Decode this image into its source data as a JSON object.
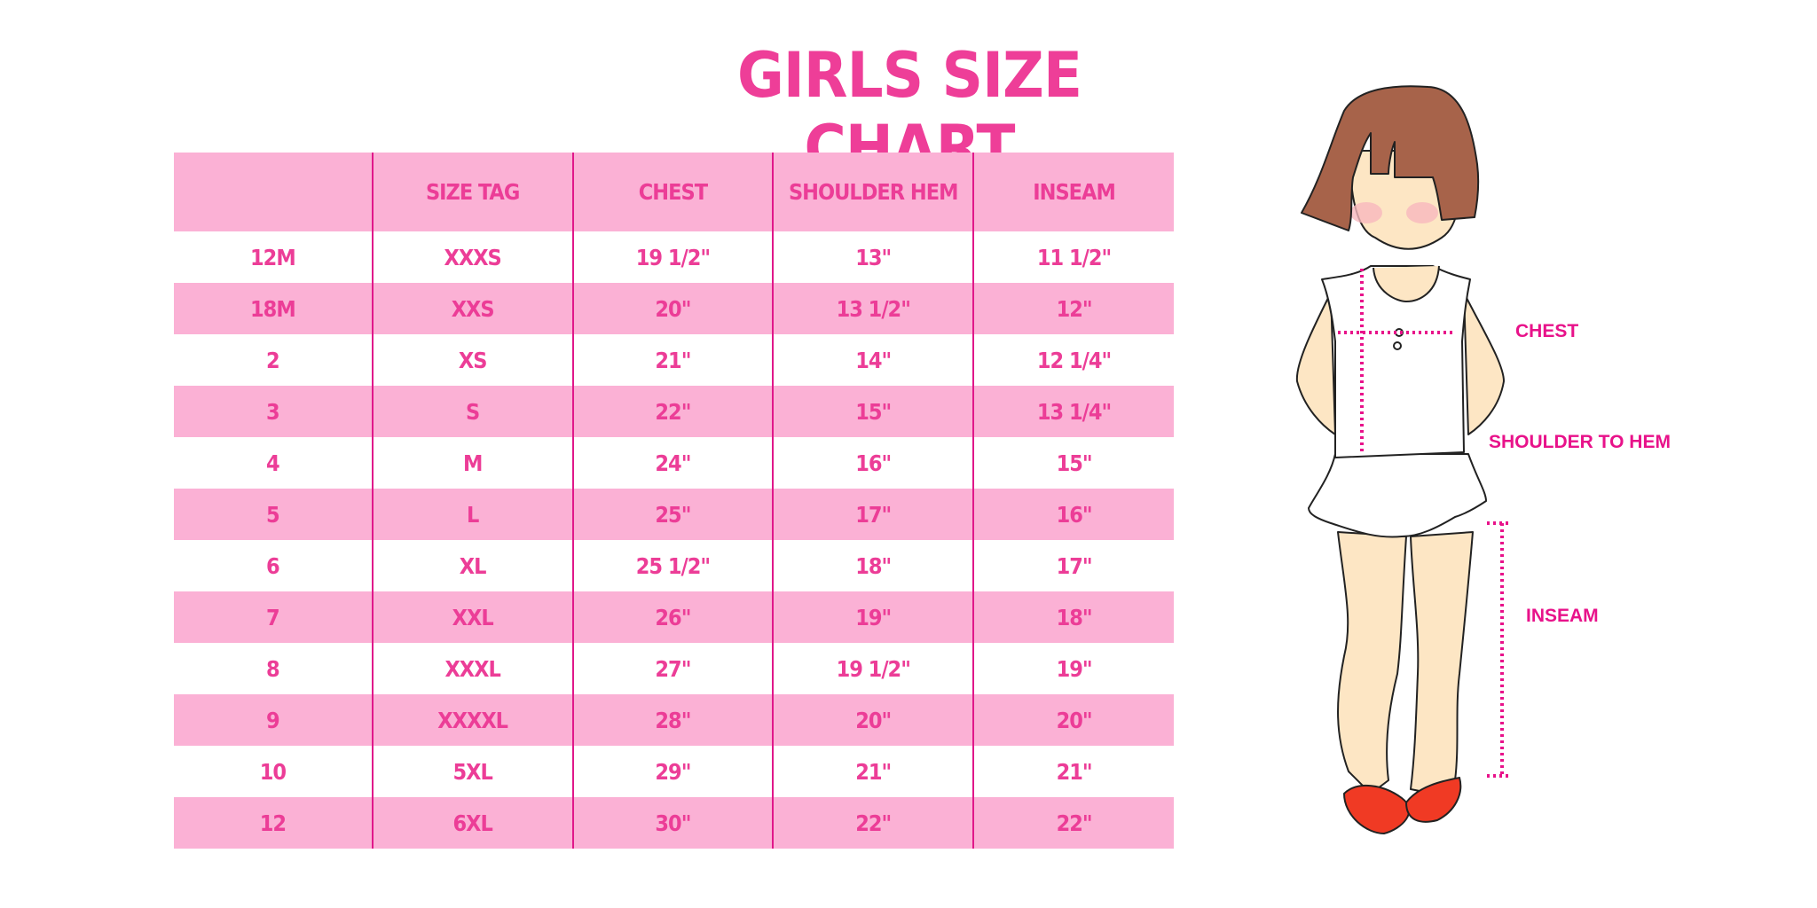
{
  "title": "GIRLS SIZE CHART",
  "table": {
    "headers": [
      "",
      "SIZE TAG",
      "CHEST",
      "SHOULDER HEM",
      "INSEAM"
    ],
    "rows": [
      [
        "12M",
        "XXXS",
        "19 1/2\"",
        "13\"",
        "11 1/2\""
      ],
      [
        "18M",
        "XXS",
        "20\"",
        "13 1/2\"",
        "12\""
      ],
      [
        "2",
        "XS",
        "21\"",
        "14\"",
        "12 1/4\""
      ],
      [
        "3",
        "S",
        "22\"",
        "15\"",
        "13 1/4\""
      ],
      [
        "4",
        "M",
        "24\"",
        "16\"",
        "15\""
      ],
      [
        "5",
        "L",
        "25\"",
        "17\"",
        "16\""
      ],
      [
        "6",
        "XL",
        "25 1/2\"",
        "18\"",
        "17\""
      ],
      [
        "7",
        "XXL",
        "26\"",
        "19\"",
        "18\""
      ],
      [
        "8",
        "XXXL",
        "27\"",
        "19 1/2\"",
        "19\""
      ],
      [
        "9",
        "XXXXL",
        "28\"",
        "20\"",
        "20\""
      ],
      [
        "10",
        "5XL",
        "29\"",
        "21\"",
        "21\""
      ],
      [
        "12",
        "6XL",
        "30\"",
        "22\"",
        "22\""
      ]
    ]
  },
  "figure": {
    "labels": {
      "chest": "CHEST",
      "shoulder_to_hem": "SHOULDER TO HEM",
      "inseam": "INSEAM"
    }
  },
  "colors": {
    "accent": "#EE3E98",
    "row_pink": "#FBB1D5",
    "divider": "#E0188A",
    "measure": "#E8128A"
  }
}
